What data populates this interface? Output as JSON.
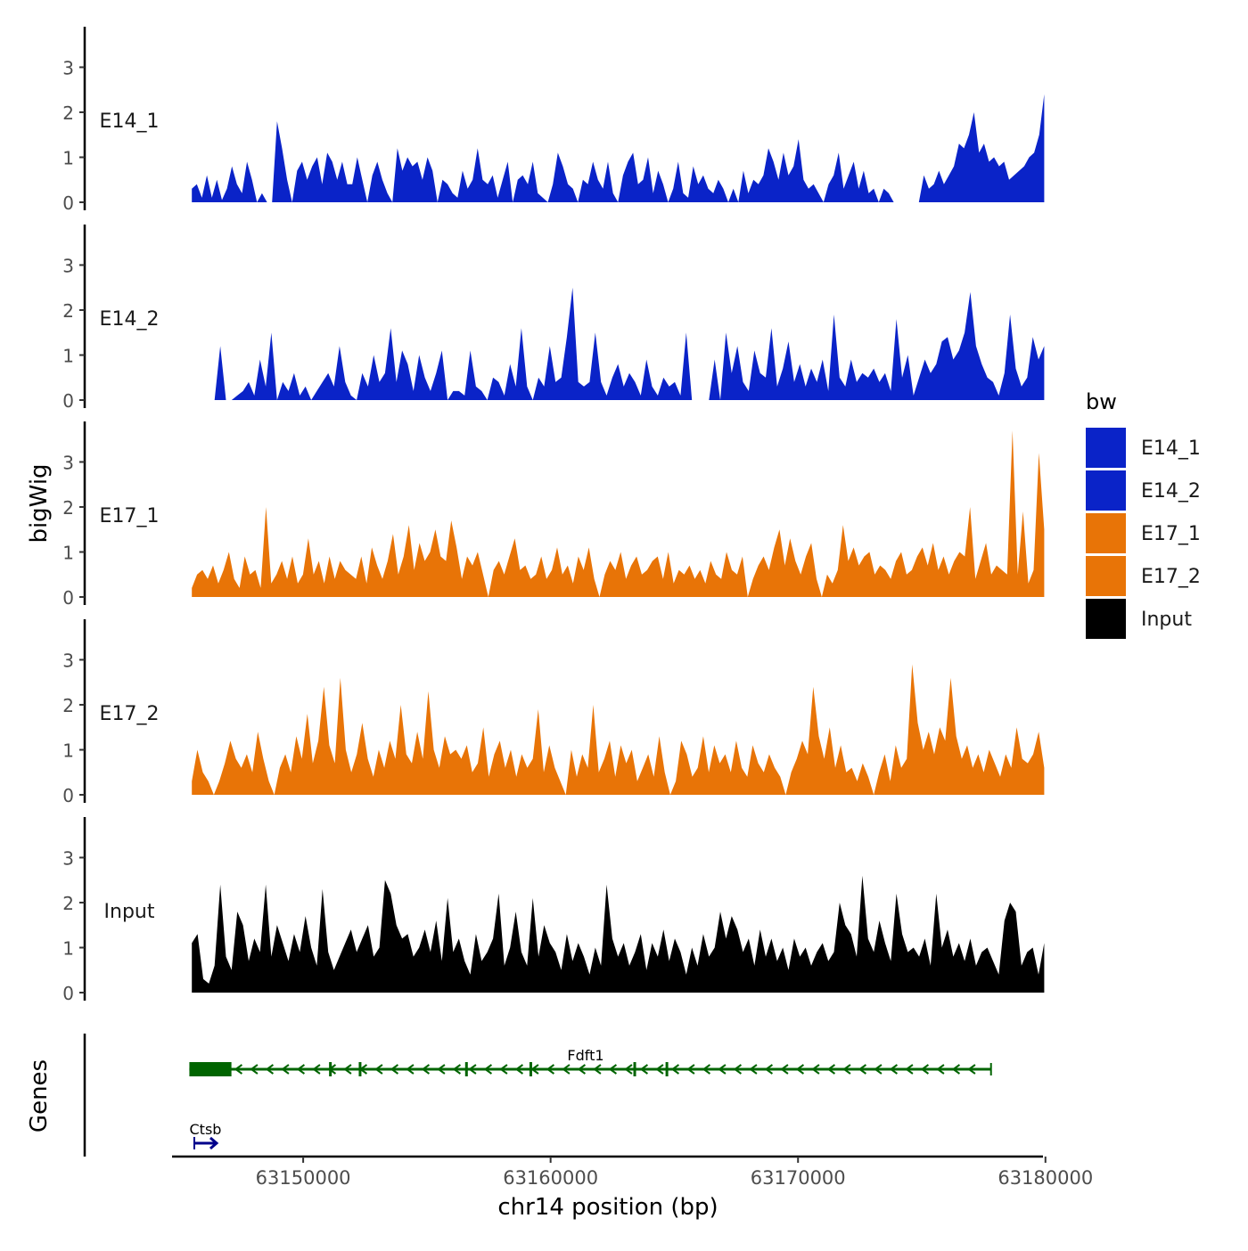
{
  "chart_data": {
    "type": "area",
    "y_axis_title": "bigWig",
    "x_axis_title": "chr14 position (bp)",
    "genes_axis_title": "Genes",
    "x_range": [
      63144700,
      63179900
    ],
    "x_ticks": [
      63150000,
      63160000,
      63170000,
      63180000
    ],
    "x_tick_labels": [
      "63150000",
      "63160000",
      "63170000",
      "63180000"
    ],
    "y_range": [
      0,
      3.9
    ],
    "y_ticks": [
      0,
      1,
      2,
      3
    ],
    "y_tick_labels": [
      "0",
      "1",
      "2",
      "3"
    ],
    "data_start": 63145500,
    "data_end": 63179950,
    "legend": {
      "title": "bw",
      "entries": [
        {
          "label": "E14_1",
          "color": "#0a23c8"
        },
        {
          "label": "E14_2",
          "color": "#0a23c8"
        },
        {
          "label": "E17_1",
          "color": "#e87407"
        },
        {
          "label": "E17_2",
          "color": "#e87407"
        },
        {
          "label": "Input",
          "color": "#000000"
        }
      ]
    },
    "tracks": [
      {
        "name": "E14_1",
        "color": "#0a23c8",
        "values": [
          0.3,
          0.4,
          0.1,
          0.6,
          0.1,
          0.5,
          0.05,
          0.3,
          0.8,
          0.4,
          0.2,
          0.9,
          0.5,
          0.0,
          0.2,
          0.0,
          0.0,
          1.8,
          1.2,
          0.5,
          0.0,
          0.7,
          0.9,
          0.5,
          0.8,
          1.0,
          0.4,
          1.1,
          0.9,
          0.5,
          0.9,
          0.4,
          0.4,
          1.0,
          0.5,
          0.0,
          0.6,
          0.9,
          0.5,
          0.2,
          0.0,
          1.2,
          0.7,
          1.0,
          0.8,
          0.9,
          0.5,
          1.0,
          0.7,
          0.0,
          0.5,
          0.4,
          0.2,
          0.1,
          0.7,
          0.3,
          0.5,
          1.2,
          0.5,
          0.4,
          0.6,
          0.1,
          0.5,
          0.9,
          0.0,
          0.5,
          0.6,
          0.4,
          0.9,
          0.2,
          0.1,
          0.0,
          0.4,
          1.1,
          0.8,
          0.4,
          0.3,
          0.0,
          0.5,
          0.4,
          0.9,
          0.5,
          0.3,
          0.9,
          0.2,
          0.0,
          0.6,
          0.9,
          1.1,
          0.4,
          0.5,
          1.0,
          0.2,
          0.7,
          0.4,
          0.0,
          0.3,
          0.9,
          0.2,
          0.1,
          0.8,
          0.4,
          0.6,
          0.3,
          0.2,
          0.5,
          0.3,
          0.0,
          0.3,
          0.0,
          0.7,
          0.2,
          0.5,
          0.4,
          0.6,
          1.2,
          0.9,
          0.5,
          1.1,
          0.6,
          0.8,
          1.4,
          0.5,
          0.3,
          0.4,
          0.2,
          0.0,
          0.4,
          0.6,
          1.1,
          0.3,
          0.6,
          0.9,
          0.3,
          0.7,
          0.2,
          0.3,
          0.0,
          0.3,
          0.2,
          0.0,
          0.0,
          0.0,
          0.0,
          0.0,
          0.0,
          0.6,
          0.3,
          0.4,
          0.7,
          0.4,
          0.6,
          0.8,
          1.3,
          1.2,
          1.5,
          2.0,
          1.1,
          1.3,
          0.9,
          1.0,
          0.8,
          0.9,
          0.5,
          0.6,
          0.7,
          0.8,
          1.0,
          1.1,
          1.5,
          2.4
        ]
      },
      {
        "name": "E14_2",
        "color": "#0a23c8",
        "values": [
          0.0,
          0.0,
          0.0,
          0.0,
          0.0,
          1.2,
          0.0,
          0.0,
          0.1,
          0.2,
          0.4,
          0.1,
          0.9,
          0.3,
          1.5,
          0.0,
          0.4,
          0.2,
          0.6,
          0.1,
          0.3,
          0.0,
          0.2,
          0.4,
          0.6,
          0.3,
          1.2,
          0.4,
          0.1,
          0.0,
          0.6,
          0.3,
          1.0,
          0.4,
          0.6,
          1.6,
          0.4,
          1.1,
          0.8,
          0.2,
          1.0,
          0.5,
          0.2,
          0.6,
          1.1,
          0.0,
          0.2,
          0.2,
          0.1,
          1.1,
          0.3,
          0.2,
          0.0,
          0.5,
          0.4,
          0.1,
          0.8,
          0.3,
          1.6,
          0.3,
          0.0,
          0.5,
          0.3,
          1.2,
          0.4,
          0.5,
          1.4,
          2.5,
          0.4,
          0.3,
          0.4,
          1.5,
          0.4,
          0.1,
          0.5,
          0.8,
          0.3,
          0.6,
          0.4,
          0.1,
          0.9,
          0.3,
          0.1,
          0.5,
          0.3,
          0.4,
          0.1,
          1.5,
          0.0,
          0.0,
          0.0,
          0.0,
          0.9,
          0.0,
          1.5,
          0.6,
          1.2,
          0.4,
          0.2,
          1.1,
          0.6,
          0.5,
          1.6,
          0.3,
          0.7,
          1.3,
          0.4,
          0.8,
          0.3,
          0.7,
          0.4,
          0.9,
          0.2,
          1.9,
          0.5,
          0.3,
          0.9,
          0.4,
          0.6,
          0.5,
          0.7,
          0.4,
          0.6,
          0.2,
          1.8,
          0.5,
          1.0,
          0.1,
          0.5,
          0.9,
          0.6,
          0.8,
          1.3,
          1.4,
          0.9,
          1.1,
          1.5,
          2.4,
          1.2,
          0.8,
          0.5,
          0.4,
          0.1,
          0.6,
          1.9,
          0.7,
          0.3,
          0.5,
          1.4,
          0.9,
          1.2
        ]
      },
      {
        "name": "E17_1",
        "color": "#e87407",
        "values": [
          0.2,
          0.5,
          0.6,
          0.4,
          0.7,
          0.3,
          0.6,
          1.0,
          0.4,
          0.2,
          0.9,
          0.5,
          0.6,
          0.2,
          2.0,
          0.3,
          0.5,
          0.8,
          0.4,
          0.9,
          0.3,
          0.5,
          1.3,
          0.5,
          0.8,
          0.3,
          0.9,
          0.4,
          0.8,
          0.6,
          0.5,
          0.4,
          0.9,
          0.3,
          1.1,
          0.7,
          0.4,
          0.8,
          1.4,
          0.5,
          0.9,
          1.6,
          0.6,
          1.2,
          0.8,
          1.0,
          1.5,
          0.9,
          0.8,
          1.7,
          1.1,
          0.4,
          0.9,
          0.7,
          1.0,
          0.5,
          0.0,
          0.6,
          0.8,
          0.5,
          0.9,
          1.3,
          0.6,
          0.7,
          0.4,
          0.5,
          0.9,
          0.4,
          0.6,
          1.1,
          0.5,
          0.7,
          0.3,
          0.9,
          0.6,
          1.1,
          0.4,
          0.0,
          0.5,
          0.8,
          0.6,
          1.0,
          0.4,
          0.7,
          0.9,
          0.5,
          0.6,
          0.8,
          0.9,
          0.4,
          1.0,
          0.3,
          0.6,
          0.5,
          0.7,
          0.4,
          0.6,
          0.3,
          0.8,
          0.5,
          0.4,
          1.0,
          0.6,
          0.5,
          0.9,
          0.0,
          0.4,
          0.7,
          0.9,
          0.6,
          1.1,
          1.5,
          0.7,
          1.3,
          0.8,
          0.5,
          0.9,
          1.2,
          0.4,
          0.0,
          0.5,
          0.3,
          0.6,
          1.6,
          0.8,
          1.1,
          0.7,
          0.9,
          1.0,
          0.5,
          0.7,
          0.6,
          0.4,
          0.8,
          1.0,
          0.5,
          0.6,
          0.9,
          1.1,
          0.7,
          1.2,
          0.6,
          0.9,
          0.5,
          0.8,
          1.0,
          0.9,
          2.0,
          0.4,
          0.8,
          1.2,
          0.5,
          0.7,
          0.6,
          0.5,
          3.7,
          0.5,
          1.9,
          0.3,
          0.6,
          3.2,
          1.5
        ]
      },
      {
        "name": "E17_2",
        "color": "#e87407",
        "values": [
          0.3,
          1.0,
          0.5,
          0.3,
          0.0,
          0.3,
          0.7,
          1.2,
          0.8,
          0.6,
          0.9,
          0.5,
          1.4,
          0.8,
          0.3,
          0.0,
          0.6,
          0.9,
          0.5,
          1.3,
          0.8,
          1.8,
          0.7,
          1.2,
          2.4,
          1.1,
          0.7,
          2.6,
          1.0,
          0.5,
          0.9,
          1.6,
          0.8,
          0.4,
          1.0,
          0.6,
          1.2,
          0.8,
          2.0,
          0.9,
          0.7,
          1.4,
          0.8,
          2.3,
          1.0,
          0.6,
          1.3,
          0.9,
          1.0,
          0.8,
          1.1,
          0.5,
          0.7,
          1.5,
          0.4,
          0.9,
          1.2,
          0.6,
          1.0,
          0.4,
          0.9,
          0.6,
          0.8,
          1.9,
          0.5,
          1.1,
          0.6,
          0.3,
          0.0,
          1.0,
          0.4,
          0.9,
          0.6,
          2.0,
          0.5,
          0.8,
          1.2,
          0.4,
          1.1,
          0.7,
          1.0,
          0.3,
          0.6,
          0.9,
          0.4,
          1.3,
          0.5,
          0.0,
          0.3,
          1.2,
          0.9,
          0.4,
          0.6,
          1.3,
          0.5,
          1.1,
          0.7,
          0.9,
          0.5,
          1.2,
          0.6,
          0.4,
          1.1,
          0.7,
          0.5,
          0.9,
          0.6,
          0.4,
          0.0,
          0.5,
          0.8,
          1.2,
          0.9,
          2.4,
          1.3,
          0.8,
          1.5,
          0.6,
          1.1,
          0.5,
          0.6,
          0.3,
          0.7,
          0.4,
          0.0,
          0.5,
          0.9,
          0.3,
          1.1,
          0.6,
          0.8,
          2.9,
          1.6,
          1.0,
          1.4,
          0.9,
          1.5,
          1.2,
          2.6,
          1.3,
          0.8,
          1.1,
          0.6,
          0.9,
          0.5,
          1.0,
          0.7,
          0.4,
          0.9,
          0.6,
          1.5,
          0.8,
          0.7,
          0.9,
          1.4,
          0.6
        ]
      },
      {
        "name": "Input",
        "color": "#000000",
        "values": [
          1.1,
          1.3,
          0.3,
          0.2,
          0.6,
          2.4,
          0.8,
          0.5,
          1.8,
          1.5,
          0.7,
          1.2,
          0.9,
          2.4,
          0.8,
          1.5,
          1.1,
          0.7,
          1.3,
          0.9,
          1.7,
          1.0,
          0.6,
          2.3,
          0.9,
          0.5,
          0.8,
          1.1,
          1.4,
          0.9,
          1.2,
          1.5,
          0.8,
          1.0,
          2.5,
          2.2,
          1.5,
          1.2,
          1.3,
          0.8,
          1.0,
          1.4,
          0.9,
          1.6,
          0.7,
          2.1,
          0.9,
          1.2,
          0.7,
          0.4,
          1.3,
          0.7,
          0.9,
          1.2,
          2.2,
          0.6,
          1.0,
          1.8,
          0.9,
          0.6,
          2.1,
          0.8,
          1.5,
          1.1,
          0.9,
          0.5,
          1.3,
          0.7,
          1.1,
          0.8,
          0.4,
          1.0,
          0.6,
          2.4,
          1.2,
          0.8,
          1.1,
          0.6,
          0.9,
          1.3,
          0.5,
          1.1,
          0.8,
          1.4,
          0.7,
          1.2,
          0.9,
          0.4,
          1.0,
          0.6,
          1.3,
          0.8,
          1.0,
          1.8,
          1.2,
          1.7,
          1.4,
          0.9,
          1.2,
          0.6,
          1.4,
          0.8,
          1.2,
          0.7,
          1.0,
          0.5,
          1.2,
          0.8,
          1.0,
          0.6,
          0.9,
          1.1,
          0.7,
          0.9,
          2.0,
          1.5,
          1.3,
          0.8,
          2.6,
          1.2,
          0.9,
          1.6,
          1.1,
          0.7,
          2.2,
          1.3,
          0.9,
          1.0,
          0.8,
          1.2,
          0.6,
          2.2,
          1.0,
          1.4,
          0.8,
          1.1,
          0.7,
          1.2,
          0.6,
          0.9,
          1.0,
          0.7,
          0.4,
          1.6,
          2.0,
          1.8,
          0.6,
          0.9,
          1.0,
          0.4,
          1.1
        ]
      }
    ],
    "genes": [
      {
        "name": "Fdft1",
        "start": 63145400,
        "end": 63177800,
        "strand": "-",
        "color": "#006400",
        "exon_blocks": [
          [
            63145400,
            63147100
          ]
        ],
        "exon_ticks": [
          63151100,
          63152300,
          63156600,
          63159200,
          63163400,
          63164700
        ]
      },
      {
        "name": "Ctsb",
        "start": 63145600,
        "end": 63146500,
        "strand": "+",
        "color": "#00008b",
        "exon_blocks": [],
        "exon_ticks": []
      }
    ]
  }
}
